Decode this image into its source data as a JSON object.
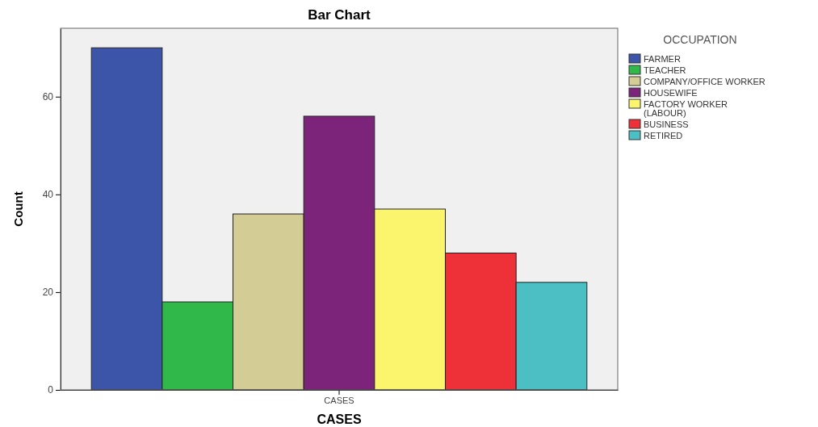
{
  "chart_data": {
    "type": "bar",
    "title": "Bar Chart",
    "xlabel": "CASES",
    "ylabel": "Count",
    "legend_title": "OCCUPATION",
    "categories": [
      "CASES"
    ],
    "series": [
      {
        "name": "FARMER",
        "color": "#3d55a8",
        "values": [
          70
        ]
      },
      {
        "name": "TEACHER",
        "color": "#30b84a",
        "values": [
          18
        ]
      },
      {
        "name": "COMPANY/OFFICE WORKER",
        "color": "#d3cd95",
        "values": [
          36
        ]
      },
      {
        "name": "HOUSEWIFE",
        "color": "#7b2479",
        "values": [
          56
        ]
      },
      {
        "name": "FACTORY WORKER (LABOUR)",
        "color": "#fbf46d",
        "values": [
          37
        ]
      },
      {
        "name": "BUSINESS",
        "color": "#ee3038",
        "values": [
          28
        ]
      },
      {
        "name": "RETIRED",
        "color": "#4bbfc3",
        "values": [
          22
        ]
      }
    ],
    "ylim": [
      0,
      74
    ],
    "yticks": [
      0,
      20,
      40,
      60
    ],
    "grid": false,
    "legend": "top right"
  }
}
